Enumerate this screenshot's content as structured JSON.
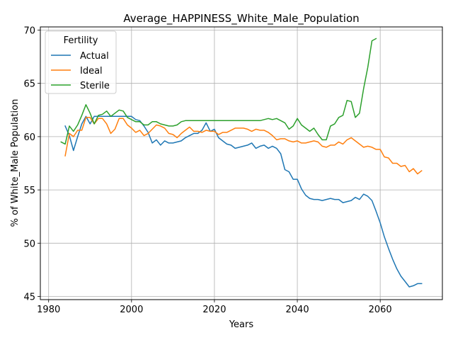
{
  "chart_data": {
    "type": "line",
    "title": "Average_HAPPINESS_White_Male_Population",
    "xlabel": "Years",
    "ylabel": "% of White_Male Population",
    "xlim": [
      1978,
      2075
    ],
    "ylim": [
      44.7,
      70.3
    ],
    "xticks": [
      1980,
      2000,
      2020,
      2040,
      2060
    ],
    "yticks": [
      45,
      50,
      55,
      60,
      65,
      70
    ],
    "grid": true,
    "legend": {
      "title": "Fertility",
      "placement": "top-left"
    },
    "colors": {
      "Actual": "#1f77b4",
      "Ideal": "#ff7f0e",
      "Sterile": "#2ca02c"
    },
    "series": [
      {
        "name": "Actual",
        "x": [
          1984,
          1985,
          1986,
          1987,
          1988,
          1989,
          1990,
          1991,
          1992,
          1993,
          1994,
          1995,
          1996,
          1997,
          1998,
          1999,
          2000,
          2001,
          2002,
          2003,
          2004,
          2005,
          2006,
          2007,
          2008,
          2009,
          2010,
          2011,
          2012,
          2013,
          2014,
          2015,
          2016,
          2017,
          2018,
          2019,
          2020,
          2021,
          2022,
          2023,
          2024,
          2025,
          2026,
          2027,
          2028,
          2029,
          2030,
          2031,
          2032,
          2033,
          2034,
          2035,
          2036,
          2037,
          2038,
          2039,
          2040,
          2041,
          2042,
          2043,
          2044,
          2045,
          2046,
          2047,
          2048,
          2049,
          2050,
          2051,
          2052,
          2053,
          2054,
          2055,
          2056,
          2057,
          2058,
          2059,
          2060,
          2061,
          2062,
          2063,
          2064,
          2065,
          2066,
          2067,
          2068,
          2069,
          2070
        ],
        "values": [
          61.0,
          60.1,
          58.7,
          60.0,
          61.2,
          61.9,
          61.2,
          61.9,
          61.9,
          61.9,
          61.9,
          61.9,
          61.9,
          61.9,
          61.9,
          61.9,
          61.9,
          61.6,
          61.5,
          61.0,
          60.4,
          59.4,
          59.7,
          59.2,
          59.6,
          59.4,
          59.4,
          59.5,
          59.6,
          59.9,
          60.1,
          60.3,
          60.3,
          60.6,
          61.3,
          60.5,
          60.7,
          59.9,
          59.6,
          59.3,
          59.2,
          58.9,
          59.0,
          59.1,
          59.2,
          59.4,
          58.9,
          59.1,
          59.2,
          58.9,
          59.1,
          58.9,
          58.4,
          56.9,
          56.7,
          56.0,
          56.0,
          55.1,
          54.5,
          54.2,
          54.1,
          54.1,
          54.0,
          54.1,
          54.2,
          54.1,
          54.1,
          53.8,
          53.9,
          54.0,
          54.3,
          54.1,
          54.6,
          54.4,
          54.0,
          53.0,
          51.9,
          50.6,
          49.5,
          48.5,
          47.6,
          46.9,
          46.4,
          45.9,
          46.0,
          46.2,
          46.2
        ]
      },
      {
        "name": "Ideal",
        "x": [
          1984,
          1985,
          1986,
          1987,
          1988,
          1989,
          1990,
          1991,
          1992,
          1993,
          1994,
          1995,
          1996,
          1997,
          1998,
          1999,
          2000,
          2001,
          2002,
          2003,
          2004,
          2005,
          2006,
          2007,
          2008,
          2009,
          2010,
          2011,
          2012,
          2013,
          2014,
          2015,
          2016,
          2017,
          2018,
          2019,
          2020,
          2021,
          2022,
          2023,
          2024,
          2025,
          2026,
          2027,
          2028,
          2029,
          2030,
          2031,
          2032,
          2033,
          2034,
          2035,
          2036,
          2037,
          2038,
          2039,
          2040,
          2041,
          2042,
          2043,
          2044,
          2045,
          2046,
          2047,
          2048,
          2049,
          2050,
          2051,
          2052,
          2053,
          2054,
          2055,
          2056,
          2057,
          2058,
          2059,
          2060,
          2061,
          2062,
          2063,
          2064,
          2065,
          2066,
          2067,
          2068,
          2069,
          2070
        ],
        "values": [
          58.2,
          60.3,
          60.0,
          60.6,
          60.6,
          61.8,
          61.8,
          61.2,
          61.7,
          61.7,
          61.2,
          60.3,
          60.7,
          61.7,
          61.7,
          61.1,
          60.8,
          60.4,
          60.6,
          60.1,
          60.3,
          60.7,
          61.1,
          61.0,
          60.8,
          60.3,
          60.2,
          59.9,
          60.3,
          60.6,
          60.9,
          60.5,
          60.5,
          60.4,
          60.6,
          60.5,
          60.5,
          60.2,
          60.4,
          60.4,
          60.6,
          60.8,
          60.8,
          60.8,
          60.7,
          60.5,
          60.7,
          60.6,
          60.6,
          60.4,
          60.1,
          59.7,
          59.8,
          59.8,
          59.6,
          59.5,
          59.6,
          59.4,
          59.4,
          59.5,
          59.6,
          59.5,
          59.1,
          59.0,
          59.2,
          59.2,
          59.5,
          59.3,
          59.7,
          59.9,
          59.6,
          59.3,
          59.0,
          59.1,
          59.0,
          58.8,
          58.8,
          58.1,
          58.0,
          57.5,
          57.5,
          57.2,
          57.3,
          56.7,
          57.0,
          56.5,
          56.8
        ]
      },
      {
        "name": "Sterile",
        "x": [
          1983,
          1984,
          1985,
          1986,
          1987,
          1988,
          1989,
          1990,
          1991,
          1992,
          1993,
          1994,
          1995,
          1996,
          1997,
          1998,
          1999,
          2000,
          2001,
          2002,
          2003,
          2004,
          2005,
          2006,
          2007,
          2008,
          2009,
          2010,
          2011,
          2012,
          2013,
          2014,
          2015,
          2016,
          2017,
          2018,
          2019,
          2020,
          2021,
          2022,
          2023,
          2024,
          2025,
          2026,
          2027,
          2028,
          2029,
          2030,
          2031,
          2032,
          2033,
          2034,
          2035,
          2036,
          2037,
          2038,
          2039,
          2040,
          2041,
          2042,
          2043,
          2044,
          2045,
          2046,
          2047,
          2048,
          2049,
          2050,
          2051,
          2052,
          2053,
          2054,
          2055,
          2056,
          2057,
          2058,
          2059
        ],
        "values": [
          59.5,
          59.3,
          61.0,
          60.5,
          61.1,
          62.0,
          63.0,
          62.2,
          61.2,
          62.0,
          62.1,
          62.4,
          61.9,
          62.2,
          62.5,
          62.4,
          61.8,
          61.6,
          61.4,
          61.4,
          61.1,
          61.1,
          61.4,
          61.4,
          61.2,
          61.1,
          61.0,
          61.0,
          61.1,
          61.4,
          61.5,
          61.5,
          61.5,
          61.5,
          61.5,
          61.5,
          61.5,
          61.5,
          61.5,
          61.5,
          61.5,
          61.5,
          61.5,
          61.5,
          61.5,
          61.5,
          61.5,
          61.5,
          61.5,
          61.6,
          61.7,
          61.6,
          61.7,
          61.5,
          61.3,
          60.7,
          61.0,
          61.7,
          61.1,
          60.8,
          60.5,
          60.8,
          60.2,
          59.7,
          59.7,
          61.0,
          61.2,
          61.8,
          62.0,
          63.4,
          63.3,
          61.8,
          62.2,
          64.5,
          66.5,
          69.0,
          69.2
        ]
      }
    ]
  }
}
